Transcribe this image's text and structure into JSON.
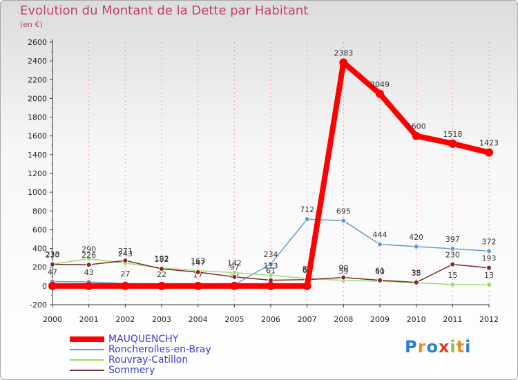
{
  "title": "Evolution du Montant de la Dette par Habitant",
  "subtitle": "(en €)",
  "logo_text": "Proxiti",
  "chart_data": {
    "type": "line",
    "x": [
      "2000",
      "2001",
      "2002",
      "2003",
      "2004",
      "2005",
      "2006",
      "2007",
      "2008",
      "2009",
      "2010",
      "2011",
      "2012"
    ],
    "ylim": [
      -200,
      2600
    ],
    "yticks": [
      -200,
      0,
      200,
      400,
      600,
      800,
      1000,
      1200,
      1400,
      1600,
      1800,
      2000,
      2200,
      2400,
      2600
    ],
    "grid": "vertical",
    "legend_position": "bottom-left",
    "series": [
      {
        "name": "MAUQUENCHY",
        "color": "#ff0000",
        "width": 8,
        "label_color": "#333333",
        "values": [
          0,
          0,
          0,
          0,
          0,
          0,
          0,
          0,
          2383,
          2049,
          1600,
          1518,
          1423
        ],
        "labels": [
          null,
          null,
          null,
          null,
          null,
          null,
          null,
          null,
          "2383",
          "2049",
          "1600",
          "1518",
          "1423"
        ]
      },
      {
        "name": "Roncherolles-en-Bray",
        "color": "#6699cc",
        "width": 1.5,
        "label_color": "#333333",
        "values": [
          47,
          43,
          27,
          22,
          17,
          12,
          234,
          712,
          695,
          444,
          420,
          397,
          372
        ],
        "labels": [
          "47",
          "43",
          "27",
          "22",
          "17",
          "12",
          "234",
          "712",
          "695",
          "444",
          "420",
          "397",
          "372"
        ]
      },
      {
        "name": "Rouvray-Catillon",
        "color": "#99dd66",
        "width": 1.5,
        "label_color": "#333333",
        "values": [
          233,
          290,
          243,
          192,
          163,
          142,
          113,
          80,
          59,
          50,
          35,
          15,
          13
        ],
        "labels": [
          "233",
          "290",
          "243",
          "192",
          "163",
          "142",
          "113",
          "80",
          "59",
          "50",
          "35",
          "15",
          "13"
        ]
      },
      {
        "name": "Sommery",
        "color": "#7a2a2a",
        "width": 1.5,
        "label_color": "#333333",
        "values": [
          230,
          226,
          271,
          182,
          147,
          97,
          61,
          67,
          90,
          61,
          38,
          230,
          193
        ],
        "labels": [
          "230",
          "226",
          "271",
          "182",
          "147",
          "97",
          "61",
          "67",
          "90",
          "61",
          "38",
          "230",
          "193"
        ]
      }
    ]
  }
}
